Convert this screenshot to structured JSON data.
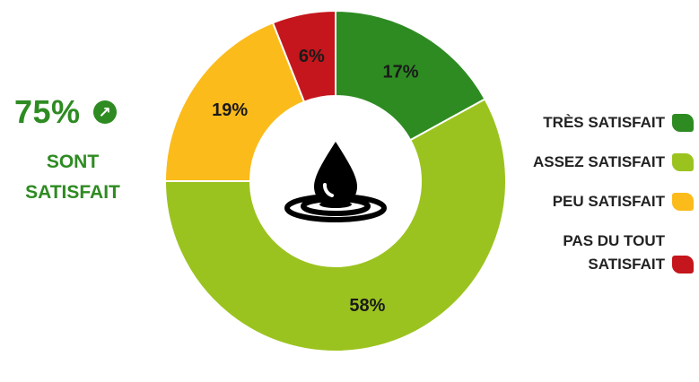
{
  "callout": {
    "percentage": "75%",
    "line1": "SONT",
    "line2": "SATISFAIT",
    "icon": "arrow-up-right-icon"
  },
  "center_icon": "water-drop-ripple-icon",
  "chart_data": {
    "type": "pie",
    "donut": true,
    "slices": [
      {
        "name": "TRÈS SATISFAIT",
        "value": 17,
        "label": "17%",
        "color": "#2e8b22"
      },
      {
        "name": "ASSEZ SATISFAIT",
        "value": 58,
        "label": "58%",
        "color": "#9bc31f"
      },
      {
        "name": "PEU SATISFAIT",
        "value": 19,
        "label": "19%",
        "color": "#fbbb1b"
      },
      {
        "name": "PAS DU TOUT SATISFAIT",
        "value": 6,
        "label": "6%",
        "color": "#c4161c"
      }
    ],
    "legend": [
      {
        "label": "TRÈS SATISFAIT",
        "color": "#2e8b22"
      },
      {
        "label": "ASSEZ SATISFAIT",
        "color": "#9bc31f"
      },
      {
        "label": "PEU SATISFAIT",
        "color": "#fbbb1b"
      },
      {
        "label": "PAS DU TOUT\nSATISFAIT",
        "color": "#c4161c"
      }
    ],
    "legend_position": "right"
  }
}
